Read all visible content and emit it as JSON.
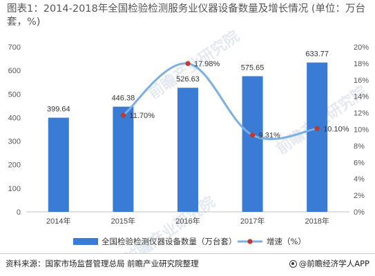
{
  "title": "图表1：2014-2018年全国检验检测服务业仪器设备数量及增长情况 (单位：万台套，%)",
  "source": "资料来源：国家市场监督管理总局 前瞻产业研究院整理",
  "brand": "@前瞻经济学人APP",
  "watermark": "前瞻产业研究院",
  "chart_data": {
    "type": "bar+line",
    "categories": [
      "2014年",
      "2015年",
      "2016年",
      "2017年",
      "2018年"
    ],
    "series": [
      {
        "name": "全国检验检测仪器设备数量（万台套）",
        "type": "bar",
        "axis": "left",
        "color": "#3a7bd5",
        "values": [
          399.64,
          446.38,
          526.63,
          575.65,
          633.77
        ],
        "labels": [
          "399.64",
          "446.38",
          "526.63",
          "575.65",
          "633.77"
        ]
      },
      {
        "name": "增速（%）",
        "type": "line",
        "axis": "right",
        "color": "#7aaee6",
        "marker_color": "#c0392b",
        "values": [
          null,
          11.7,
          17.98,
          9.31,
          10.1
        ],
        "labels": [
          "",
          "11.70%",
          "17.98%",
          "9.31%",
          "10.10%"
        ]
      }
    ],
    "y_left": {
      "min": 0,
      "max": 700,
      "step": 100,
      "ticks": [
        "0",
        "100",
        "200",
        "300",
        "400",
        "500",
        "600",
        "700"
      ]
    },
    "y_right": {
      "min": 0,
      "max": 20,
      "step": 2,
      "ticks": [
        "0%",
        "2%",
        "4%",
        "6%",
        "8%",
        "10%",
        "12%",
        "14%",
        "16%",
        "18%",
        "20%"
      ]
    },
    "grid": false,
    "legend": "bottom-center"
  }
}
